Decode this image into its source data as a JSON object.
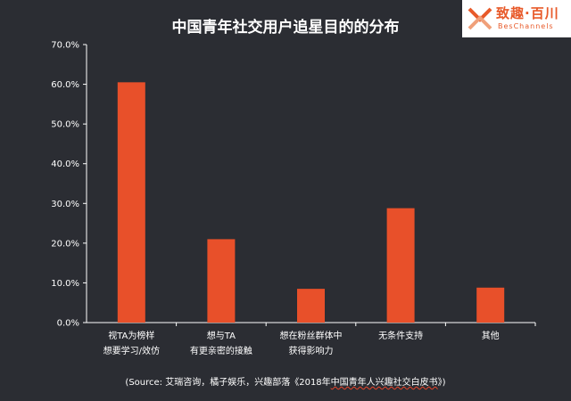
{
  "brand": {
    "name_cn": "致趣·百川",
    "name_en": "BesChannels",
    "accent_color": "#e85a2a"
  },
  "source": {
    "prefix": "(Source: 艾瑞咨询，橘子娱乐，兴趣部落《2018年",
    "book": "中国青年人兴趣社交白皮书",
    "suffix": "》)"
  },
  "chart_data": {
    "type": "bar",
    "title": "中国青年社交用户追星目的的分布",
    "xlabel": "",
    "ylabel": "",
    "categories": [
      [
        "视TA为榜样",
        "想要学习/效仿"
      ],
      [
        "想与TA",
        "有更亲密的接触"
      ],
      [
        "想在粉丝群体中",
        "获得影响力"
      ],
      [
        "无条件支持"
      ],
      [
        "其他"
      ]
    ],
    "values": [
      60.5,
      21.0,
      8.5,
      28.8,
      8.8
    ],
    "ylim": [
      0,
      70
    ],
    "yticks": [
      "0.0%",
      "10.0%",
      "20.0%",
      "30.0%",
      "40.0%",
      "50.0%",
      "60.0%",
      "70.0%"
    ],
    "ytick_values": [
      0,
      10,
      20,
      30,
      40,
      50,
      60,
      70
    ],
    "bar_color": "#e8502a",
    "axis_color": "#ffffff",
    "grid": false,
    "legend": false
  }
}
